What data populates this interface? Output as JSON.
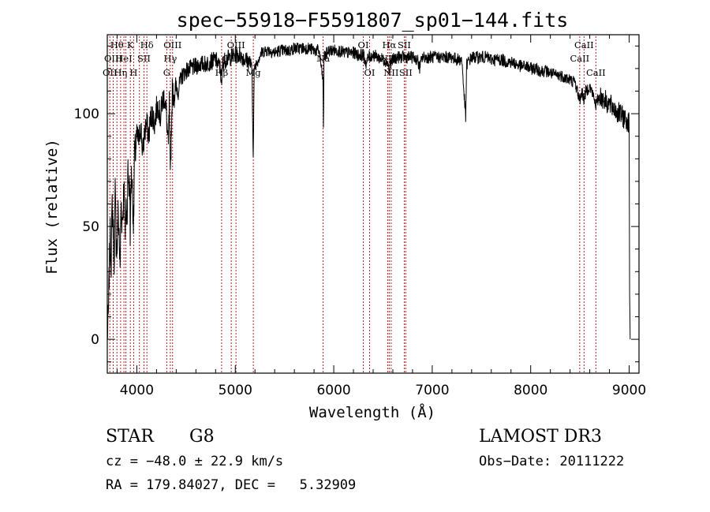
{
  "chart_data": {
    "type": "line",
    "title": "spec−55918−F5591807_sp01−144.fits",
    "xlabel": "Wavelength (Å)",
    "ylabel": "Flux (relative)",
    "xlim": [
      3700,
      9100
    ],
    "ylim": [
      -15,
      135
    ],
    "xticks": [
      4000,
      5000,
      6000,
      7000,
      8000,
      9000
    ],
    "yticks": [
      0,
      50,
      100
    ],
    "series": [
      {
        "name": "spectrum",
        "x": [
          3700,
          3710,
          3720,
          3730,
          3740,
          3750,
          3760,
          3770,
          3780,
          3790,
          3800,
          3810,
          3820,
          3830,
          3840,
          3850,
          3860,
          3870,
          3880,
          3890,
          3900,
          3910,
          3920,
          3930,
          3934,
          3940,
          3950,
          3960,
          3968,
          3975,
          3990,
          4000,
          4020,
          4040,
          4060,
          4080,
          4100,
          4120,
          4140,
          4160,
          4180,
          4200,
          4220,
          4240,
          4260,
          4280,
          4300,
          4310,
          4320,
          4330,
          4340,
          4360,
          4380,
          4400,
          4420,
          4450,
          4480,
          4500,
          4550,
          4600,
          4650,
          4700,
          4750,
          4800,
          4850,
          4861,
          4870,
          4900,
          4950,
          5000,
          5050,
          5100,
          5150,
          5170,
          5183,
          5190,
          5200,
          5250,
          5270,
          5300,
          5350,
          5400,
          5450,
          5500,
          5550,
          5600,
          5650,
          5700,
          5750,
          5800,
          5850,
          5890,
          5896,
          5900,
          5950,
          6000,
          6050,
          6100,
          6150,
          6200,
          6250,
          6300,
          6330,
          6350,
          6400,
          6450,
          6500,
          6550,
          6563,
          6570,
          6600,
          6650,
          6700,
          6750,
          6800,
          6850,
          6870,
          6900,
          6950,
          7000,
          7050,
          7100,
          7150,
          7200,
          7250,
          7300,
          7340,
          7350,
          7400,
          7450,
          7500,
          7550,
          7600,
          7650,
          7700,
          7750,
          7800,
          7850,
          7900,
          7950,
          8000,
          8050,
          8100,
          8150,
          8200,
          8250,
          8300,
          8350,
          8400,
          8450,
          8498,
          8520,
          8542,
          8560,
          8600,
          8620,
          8662,
          8700,
          8750,
          8800,
          8850,
          8900,
          8950,
          8980,
          9000,
          9005,
          9010
        ],
        "values": [
          2,
          8,
          30,
          45,
          35,
          60,
          50,
          35,
          65,
          45,
          40,
          55,
          48,
          30,
          62,
          52,
          58,
          70,
          45,
          60,
          55,
          75,
          68,
          65,
          40,
          70,
          72,
          60,
          50,
          80,
          85,
          90,
          88,
          95,
          82,
          92,
          96,
          90,
          98,
          100,
          95,
          102,
          104,
          98,
          106,
          108,
          100,
          92,
          85,
          105,
          70,
          110,
          108,
          112,
          110,
          116,
          118,
          119,
          120,
          121,
          122,
          122,
          123,
          124,
          120,
          110,
          122,
          124,
          125,
          126,
          126,
          124,
          123,
          118,
          80,
          115,
          121,
          126,
          127,
          128,
          128,
          127,
          128,
          128,
          128,
          129,
          129,
          129,
          129,
          128,
          128,
          115,
          90,
          125,
          128,
          128,
          128,
          127,
          127,
          127,
          126,
          126,
          122,
          125,
          126,
          125,
          124,
          123,
          118,
          122,
          124,
          125,
          125,
          125,
          125,
          124,
          120,
          125,
          125,
          125,
          125,
          125,
          125,
          125,
          124,
          124,
          98,
          122,
          125,
          125,
          125,
          125,
          124,
          124,
          124,
          123,
          123,
          122,
          121,
          121,
          120,
          120,
          119,
          119,
          118,
          117,
          117,
          116,
          115,
          114,
          106,
          110,
          106,
          110,
          112,
          110,
          104,
          108,
          106,
          104,
          102,
          100,
          98,
          97,
          96,
          20,
          0
        ]
      }
    ],
    "spectral_lines": [
      {
        "x": 3726,
        "label": "OII",
        "row": 2
      },
      {
        "x": 3760,
        "label": "OIII",
        "row": 1
      },
      {
        "x": 3798,
        "label": "Hθ",
        "row": 0
      },
      {
        "x": 3835,
        "label": "Hη",
        "row": 2
      },
      {
        "x": 3869,
        "label": "HeI",
        "row": 1
      },
      {
        "x": 3889,
        "label": "",
        "row": 0
      },
      {
        "x": 3934,
        "label": "K",
        "row": 0
      },
      {
        "x": 3968,
        "label": "H",
        "row": 2
      },
      {
        "x": 4026,
        "label": "",
        "row": 0
      },
      {
        "x": 4072,
        "label": "SII",
        "row": 1
      },
      {
        "x": 4102,
        "label": "Hδ",
        "row": 0
      },
      {
        "x": 4304,
        "label": "G",
        "row": 2
      },
      {
        "x": 4340,
        "label": "Hγ",
        "row": 1
      },
      {
        "x": 4363,
        "label": "OIII",
        "row": 0
      },
      {
        "x": 4861,
        "label": "Hβ",
        "row": 2
      },
      {
        "x": 4959,
        "label": "OIII",
        "row": 1
      },
      {
        "x": 5007,
        "label": "OIII",
        "row": 0
      },
      {
        "x": 5183,
        "label": "Mg",
        "row": 2
      },
      {
        "x": 5892,
        "label": "Na",
        "row": 1
      },
      {
        "x": 6300,
        "label": "OI",
        "row": 0
      },
      {
        "x": 6364,
        "label": "OI",
        "row": 2
      },
      {
        "x": 6548,
        "label": "NII",
        "row": 1
      },
      {
        "x": 6563,
        "label": "Hα",
        "row": 0
      },
      {
        "x": 6583,
        "label": "NII",
        "row": 2
      },
      {
        "x": 6716,
        "label": "SII",
        "row": 0
      },
      {
        "x": 6731,
        "label": "SII",
        "row": 2
      },
      {
        "x": 8498,
        "label": "CaII",
        "row": 1
      },
      {
        "x": 8542,
        "label": "CaII",
        "row": 0
      },
      {
        "x": 8662,
        "label": "CaII",
        "row": 2
      }
    ],
    "info": {
      "class": "STAR",
      "subclass": "G8",
      "survey": "LAMOST DR3",
      "cz": "cz = −48.0 ± 22.9 km/s",
      "obs_date": "Obs−Date: 20111222",
      "radec": "RA = 179.84027, DEC =   5.32909"
    },
    "colors": {
      "line": "#000000",
      "marker": "#b22222"
    }
  }
}
